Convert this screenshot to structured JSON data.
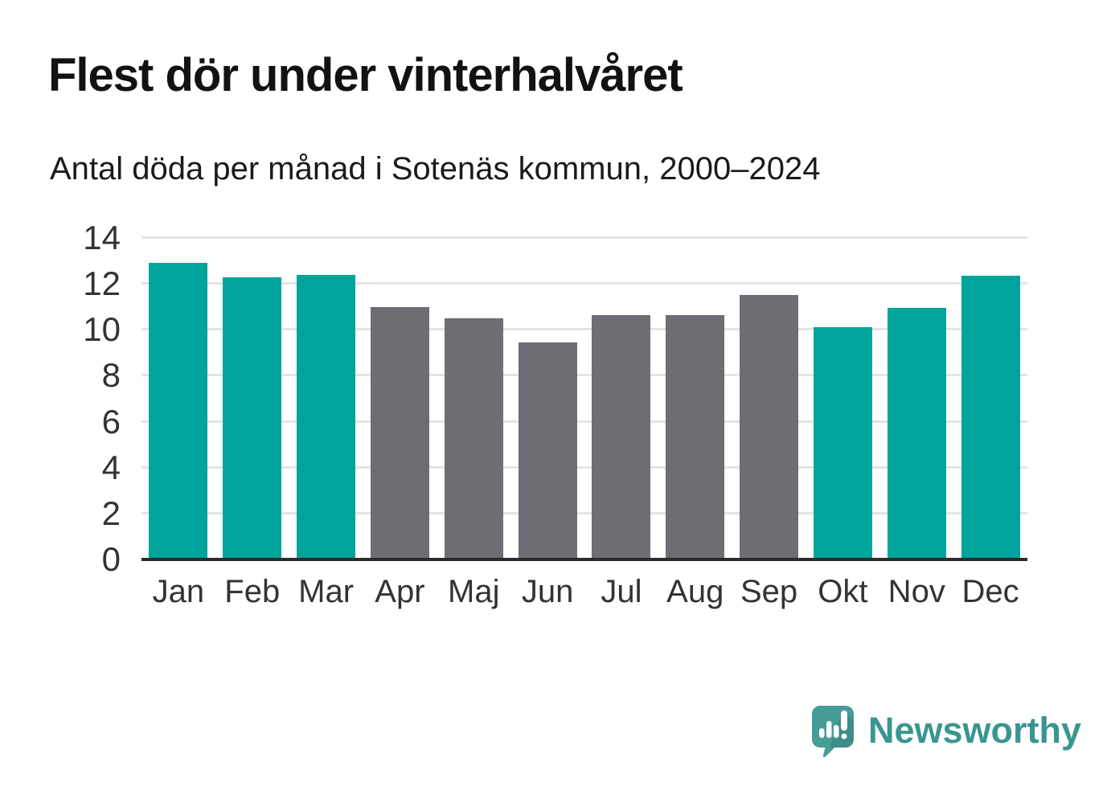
{
  "header": {
    "title": "Flest dör under vinterhalvåret",
    "subtitle": "Antal döda per månad i Sotenäs kommun, 2000–2024"
  },
  "chart_data": {
    "type": "bar",
    "title": "Flest dör under vinterhalvåret",
    "subtitle": "Antal döda per månad i Sotenäs kommun, 2000–2024",
    "categories": [
      "Jan",
      "Feb",
      "Mar",
      "Apr",
      "Maj",
      "Jun",
      "Jul",
      "Aug",
      "Sep",
      "Okt",
      "Nov",
      "Dec"
    ],
    "values": [
      12.9,
      12.3,
      12.4,
      11.0,
      10.5,
      9.45,
      10.65,
      10.65,
      11.5,
      10.1,
      10.95,
      12.35
    ],
    "bar_color_keys": [
      "winter",
      "winter",
      "winter",
      "summer",
      "summer",
      "summer",
      "summer",
      "summer",
      "summer",
      "winter",
      "winter",
      "winter"
    ],
    "xlabel": "",
    "ylabel": "",
    "ylim": [
      0,
      14
    ],
    "yticks": [
      0,
      2,
      4,
      6,
      8,
      10,
      12,
      14
    ],
    "grid": "horizontal",
    "legend": "none",
    "colors": {
      "winter": "#00a49c",
      "summer": "#6d6d73",
      "gridline": "#e4e4e4",
      "axis": "#2b2b2b",
      "tick_text": "#333333"
    }
  },
  "footer": {
    "brand": "Newsworthy",
    "brand_color": "#39968f",
    "logo_icon": "newsworthy-speech-bubble-bar-chart-icon",
    "logo_color": "#469c96"
  }
}
